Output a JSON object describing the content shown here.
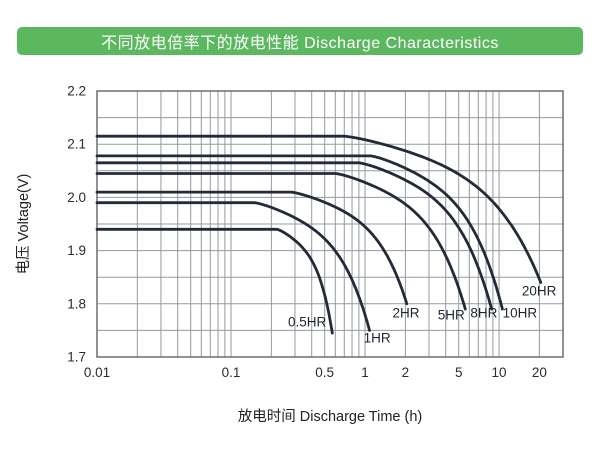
{
  "header": {
    "title": "不同放电倍率下的放电性能 Discharge Characteristics",
    "bg_color": "#5cb85f",
    "text_color": "#ffffff"
  },
  "chart_data": {
    "type": "line",
    "x_scale": "log",
    "xlim": [
      0.01,
      30
    ],
    "ylim": [
      1.7,
      2.2
    ],
    "xlabel": "放电时间  Discharge Time (h)",
    "ylabel": "电压  Voltage(V)",
    "grid": "on",
    "grid_color": "#949aa1",
    "border_color": "#5f646b",
    "curve_color": "#232a38",
    "tick_color": "#2b2b2b",
    "label_color": "#1d2430",
    "x_ticks": [
      {
        "value": 0.01,
        "label": "0.01"
      },
      {
        "value": 0.1,
        "label": "0.1"
      },
      {
        "value": 0.5,
        "label": "0.5"
      },
      {
        "value": 1,
        "label": "1"
      },
      {
        "value": 2,
        "label": "2"
      },
      {
        "value": 5,
        "label": "5"
      },
      {
        "value": 10,
        "label": "10"
      },
      {
        "value": 20,
        "label": "20"
      }
    ],
    "y_ticks": [
      {
        "value": 2.2,
        "label": "2.2"
      },
      {
        "value": 2.1,
        "label": "2.1"
      },
      {
        "value": 2.0,
        "label": "2.0"
      },
      {
        "value": 1.9,
        "label": "1.9"
      },
      {
        "value": 1.8,
        "label": "1.8"
      },
      {
        "value": 1.7,
        "label": "1.7"
      }
    ],
    "x_gridlines": [
      0.02,
      0.03,
      0.04,
      0.05,
      0.06,
      0.07,
      0.08,
      0.09,
      0.1,
      0.2,
      0.3,
      0.4,
      0.5,
      0.6,
      0.7,
      0.8,
      0.9,
      1,
      2,
      3,
      4,
      5,
      6,
      7,
      8,
      9,
      10,
      20
    ],
    "y_gridlines": [
      1.75,
      1.8,
      1.85,
      1.9,
      1.95,
      2.0,
      2.05,
      2.1,
      2.15
    ],
    "series": [
      {
        "name": "0.5HR",
        "plateau_v": 1.94,
        "bend_time": 0.22,
        "end_time": 0.57,
        "end_v": 1.745,
        "label_pos": {
          "t": 0.37,
          "v": 1.766
        }
      },
      {
        "name": "1HR",
        "plateau_v": 1.99,
        "bend_time": 0.15,
        "end_time": 1.08,
        "end_v": 1.75,
        "label_pos": {
          "t": 1.23,
          "v": 1.736
        }
      },
      {
        "name": "2HR",
        "plateau_v": 2.01,
        "bend_time": 0.28,
        "end_time": 2.05,
        "end_v": 1.8,
        "label_pos": {
          "t": 2.02,
          "v": 1.783
        }
      },
      {
        "name": "5HR",
        "plateau_v": 2.045,
        "bend_time": 0.6,
        "end_time": 5.6,
        "end_v": 1.79,
        "label_pos": {
          "t": 4.4,
          "v": 1.779
        }
      },
      {
        "name": "8HR",
        "plateau_v": 2.065,
        "bend_time": 0.9,
        "end_time": 8.8,
        "end_v": 1.79,
        "label_pos": {
          "t": 7.7,
          "v": 1.783
        }
      },
      {
        "name": "10HR",
        "plateau_v": 2.078,
        "bend_time": 1.1,
        "end_time": 10.6,
        "end_v": 1.79,
        "label_pos": {
          "t": 14.3,
          "v": 1.783
        }
      },
      {
        "name": "20HR",
        "plateau_v": 2.115,
        "bend_time": 0.7,
        "end_time": 20.5,
        "end_v": 1.84,
        "label_pos": {
          "t": 19.9,
          "v": 1.824
        }
      }
    ]
  }
}
